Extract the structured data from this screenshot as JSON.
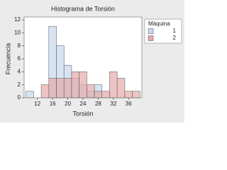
{
  "chart_data": {
    "type": "histogram",
    "title": "Histograma de Torsión",
    "x_label": "Torsión",
    "y_label": "Frecuencia",
    "bins": [
      9,
      11,
      13,
      15,
      17,
      19,
      21,
      23,
      25,
      27,
      29,
      31,
      33,
      35,
      37,
      39
    ],
    "series": [
      {
        "name": "1",
        "color": "#c6d8ee",
        "values": [
          1,
          0,
          0,
          11,
          8,
          5,
          3,
          2,
          1,
          2,
          0,
          0,
          0,
          0,
          0
        ]
      },
      {
        "name": "2",
        "color": "#e6a9a9",
        "values": [
          0,
          0,
          2,
          3,
          3,
          3,
          4,
          4,
          2,
          1,
          1,
          4,
          3,
          1,
          1
        ]
      }
    ],
    "legend_title": "Máquina",
    "xlim": [
      8.5,
      39.5
    ],
    "xticks": [
      12,
      16,
      20,
      24,
      28,
      32,
      36
    ],
    "ylim": [
      0,
      12
    ],
    "yticks": [
      0,
      2,
      4,
      6,
      8,
      10,
      12
    ]
  }
}
